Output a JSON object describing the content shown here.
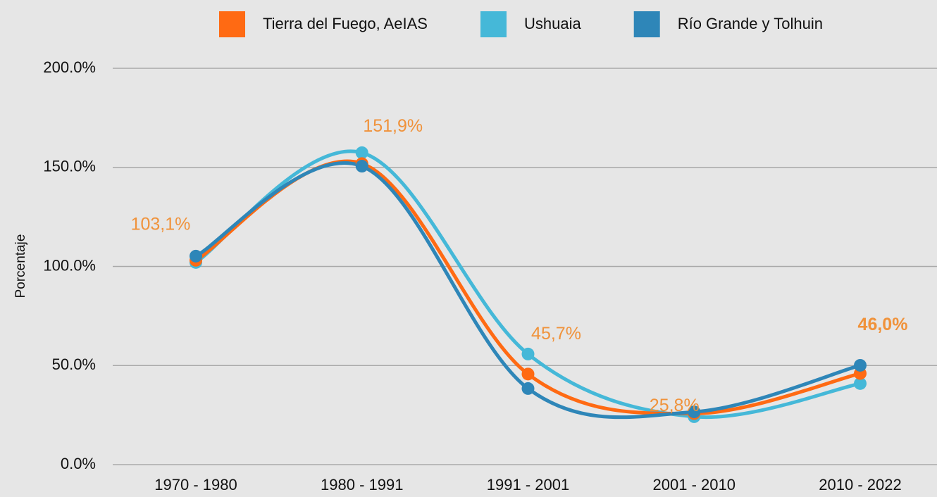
{
  "chart_data": {
    "type": "line",
    "y_label": "Porcentaje",
    "categories": [
      "1970 - 1980",
      "1980 - 1991",
      "1991 - 2001",
      "2001 - 2010",
      "2010 - 2022"
    ],
    "series": [
      {
        "name": "Ushuaia",
        "color": "#45b8d8",
        "values": [
          102.0,
          157.4,
          55.8,
          24.2,
          40.9
        ]
      },
      {
        "name": "Tierra del Fuego, AeIAS",
        "color": "#ff6a13",
        "values": [
          103.1,
          151.9,
          45.7,
          25.8,
          46.0
        ],
        "value_labels": [
          "103,1%",
          "151,9%",
          "45,7%",
          "25,8%",
          "46,0%"
        ]
      },
      {
        "name": "Río Grande y Tolhuin",
        "color": "#2e86b8",
        "values": [
          105.2,
          150.6,
          38.4,
          26.6,
          50.1
        ]
      }
    ],
    "legend_order": [
      1,
      0,
      2
    ],
    "ylim": [
      0,
      200
    ],
    "yticks": [
      {
        "value": 0,
        "label": "0.0%"
      },
      {
        "value": 50,
        "label": "50.0%"
      },
      {
        "value": 100,
        "label": "100.0%"
      },
      {
        "value": 150,
        "label": "150.0%"
      },
      {
        "value": 200,
        "label": "200.0%"
      }
    ],
    "grid": true
  }
}
